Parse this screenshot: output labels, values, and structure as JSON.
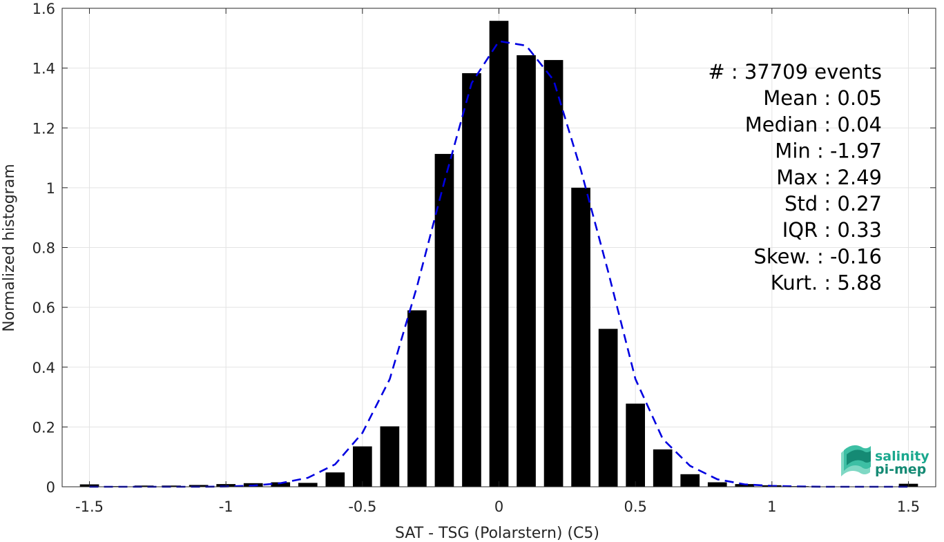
{
  "chart_data": {
    "type": "bar",
    "xlabel": "SAT - TSG (Polarstern) (C5)",
    "ylabel": "Normalized histogram",
    "xlim": [
      -1.6,
      1.6
    ],
    "ylim": [
      0,
      1.6
    ],
    "grid": true,
    "x_ticks": [
      -1.5,
      -1,
      -0.5,
      0,
      0.5,
      1,
      1.5
    ],
    "x_tick_labels": [
      "-1.5",
      "-1",
      "-0.5",
      "0",
      "0.5",
      "1",
      "1.5"
    ],
    "y_ticks": [
      0,
      0.2,
      0.4,
      0.6,
      0.8,
      1,
      1.2,
      1.4,
      1.6
    ],
    "y_tick_labels": [
      "0",
      "0.2",
      "0.4",
      "0.6",
      "0.8",
      "1",
      "1.2",
      "1.4",
      "1.6"
    ],
    "bar_width": 0.07,
    "series": [
      {
        "type": "bar",
        "color": "#000000",
        "x": [
          -1.5,
          -1.4,
          -1.3,
          -1.2,
          -1.1,
          -1.0,
          -0.9,
          -0.8,
          -0.7,
          -0.6,
          -0.5,
          -0.4,
          -0.3,
          -0.2,
          -0.1,
          0.0,
          0.1,
          0.2,
          0.3,
          0.4,
          0.5,
          0.6,
          0.7,
          0.8,
          0.9,
          1.0,
          1.1,
          1.2,
          1.3,
          1.4,
          1.5
        ],
        "values": [
          0.008,
          0.002,
          0.004,
          0.004,
          0.006,
          0.009,
          0.012,
          0.015,
          0.013,
          0.048,
          0.135,
          0.202,
          0.59,
          1.113,
          1.383,
          1.558,
          1.443,
          1.427,
          1.0,
          0.528,
          0.278,
          0.125,
          0.042,
          0.015,
          0.009,
          0.005,
          0.002,
          0.001,
          0.001,
          0.001,
          0.01
        ]
      },
      {
        "type": "line",
        "style": "dashed",
        "color": "#0000e0",
        "x": [
          -1.5,
          -1.4,
          -1.3,
          -1.2,
          -1.1,
          -1.0,
          -0.9,
          -0.8,
          -0.7,
          -0.6,
          -0.5,
          -0.4,
          -0.3,
          -0.2,
          -0.1,
          0.0,
          0.1,
          0.2,
          0.3,
          0.4,
          0.5,
          0.6,
          0.7,
          0.8,
          0.9,
          1.0,
          1.1,
          1.2,
          1.3,
          1.4,
          1.5
        ],
        "values": [
          0.0,
          0.0,
          0.0,
          0.0,
          0.0,
          0.001,
          0.004,
          0.012,
          0.03,
          0.075,
          0.18,
          0.36,
          0.67,
          1.02,
          1.35,
          1.49,
          1.475,
          1.36,
          1.06,
          0.72,
          0.36,
          0.16,
          0.07,
          0.025,
          0.008,
          0.003,
          0.001,
          0.0,
          0.0,
          0.0,
          0.0
        ]
      }
    ],
    "annotations": [
      "#  : 37709 events",
      "Mean : 0.05",
      "Median : 0.04",
      "Min : -1.97",
      "Max : 2.49",
      "Std : 0.27",
      "IQR : 0.33",
      "Skew. : -0.16",
      "Kurt. : 5.88"
    ]
  },
  "logo": {
    "line1": "salinity",
    "line2": "pi-mep",
    "color": "#1aa88e",
    "icon": "salinity-wave-icon"
  }
}
